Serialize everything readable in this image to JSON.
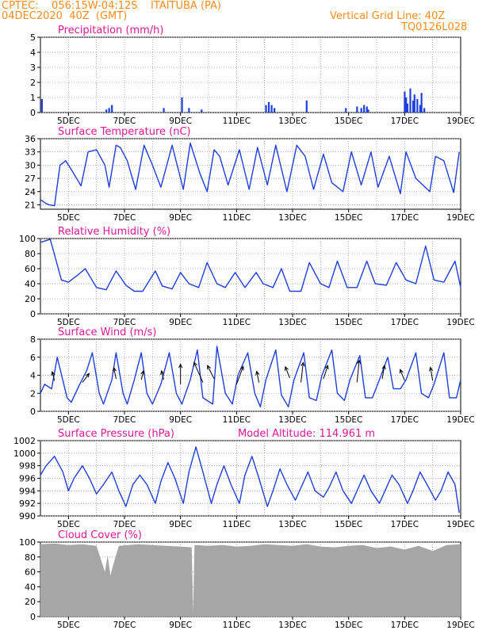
{
  "header": {
    "line1": "CPTEC:    056:15W-04:12S    ITAITUBA (PA)",
    "line2": "04DEC2020  40Z  (GMT)",
    "vgrid": "Vertical Grid Line: 40Z",
    "code": "TQ0126L028"
  },
  "colors": {
    "header": "#ff8c1a",
    "title": "#e0179a",
    "series": "#1f3fdc",
    "cloud": "#a6a6a6",
    "arrow": "#000000"
  },
  "x_ticks": [
    "5DEC",
    "7DEC",
    "9DEC",
    "11DEC",
    "13DEC",
    "15DEC",
    "17DEC",
    "19DEC"
  ],
  "chart_data": [
    {
      "type": "bar",
      "title": "Precipitation (mm/h)",
      "ylim": [
        0,
        5
      ],
      "yticks": [
        "0",
        "1",
        "2",
        "3",
        "4",
        "5"
      ],
      "x_range_days": [
        4.0,
        19.0
      ],
      "x": [
        4.05,
        6.35,
        6.45,
        6.55,
        8.4,
        9.05,
        9.3,
        9.75,
        12.05,
        12.15,
        12.25,
        12.35,
        13.5,
        14.9,
        15.3,
        15.45,
        15.55,
        15.65,
        15.7,
        17.0,
        17.05,
        17.1,
        17.2,
        17.3,
        17.35,
        17.45,
        17.55,
        17.6,
        17.7
      ],
      "values": [
        0.9,
        0.2,
        0.3,
        0.5,
        0.3,
        1.0,
        0.3,
        0.2,
        0.5,
        0.7,
        0.5,
        0.3,
        0.8,
        0.3,
        0.4,
        0.3,
        0.5,
        0.4,
        0.2,
        1.4,
        1.0,
        0.6,
        1.6,
        0.8,
        1.2,
        0.9,
        0.5,
        1.3,
        0.3
      ]
    },
    {
      "type": "line",
      "title": "Surface Temperature (nC)",
      "ylim": [
        20,
        36
      ],
      "yticks": [
        "21",
        "24",
        "27",
        "30",
        "33",
        "36"
      ],
      "ytick_values": [
        21,
        24,
        27,
        30,
        33,
        36
      ],
      "x": [
        4.0,
        4.15,
        4.3,
        4.5,
        4.7,
        4.9,
        5.1,
        5.45,
        5.7,
        6.0,
        6.3,
        6.45,
        6.7,
        6.85,
        7.1,
        7.4,
        7.7,
        8.0,
        8.3,
        8.7,
        9.1,
        9.35,
        9.7,
        9.95,
        10.2,
        10.4,
        10.7,
        11.1,
        11.45,
        11.75,
        12.1,
        12.4,
        12.8,
        13.15,
        13.45,
        13.75,
        14.1,
        14.4,
        14.8,
        15.1,
        15.45,
        15.8,
        16.05,
        16.45,
        16.85,
        17.05,
        17.4,
        17.9,
        18.1,
        18.4,
        18.75,
        18.95
      ],
      "values": [
        22.2,
        21.5,
        21.0,
        20.8,
        30.0,
        31.0,
        29.0,
        25.3,
        33.0,
        33.5,
        30.0,
        25.0,
        34.5,
        34.0,
        31.0,
        24.5,
        34.5,
        30.0,
        25.0,
        34.5,
        24.5,
        35.0,
        28.0,
        24.0,
        33.5,
        32.0,
        25.5,
        33.5,
        24.5,
        34.0,
        25.5,
        34.5,
        24.0,
        34.5,
        32.0,
        24.5,
        32.5,
        26.0,
        24.0,
        33.0,
        25.5,
        33.0,
        25.0,
        32.0,
        23.5,
        33.0,
        27.0,
        24.0,
        32.0,
        31.0,
        23.8,
        33.0
      ]
    },
    {
      "type": "line",
      "title": "Relative Humidity (%)",
      "ylim": [
        0,
        100
      ],
      "yticks": [
        "0",
        "20",
        "40",
        "60",
        "80",
        "100"
      ],
      "ytick_values": [
        0,
        20,
        40,
        60,
        80,
        100
      ],
      "x": [
        4.0,
        4.35,
        4.75,
        5.0,
        5.35,
        5.6,
        6.0,
        6.35,
        6.7,
        7.05,
        7.35,
        7.65,
        8.1,
        8.35,
        8.7,
        9.0,
        9.3,
        9.65,
        9.95,
        10.3,
        10.6,
        10.95,
        11.3,
        11.7,
        11.95,
        12.3,
        12.6,
        12.9,
        13.3,
        13.6,
        14.0,
        14.3,
        14.6,
        14.95,
        15.3,
        15.65,
        15.95,
        16.35,
        16.7,
        17.05,
        17.4,
        17.75,
        18.05,
        18.4,
        18.8,
        19.0
      ],
      "values": [
        95,
        99,
        45,
        42,
        52,
        60,
        35,
        32,
        57,
        38,
        30,
        30,
        57,
        37,
        33,
        55,
        40,
        35,
        68,
        40,
        35,
        55,
        35,
        55,
        40,
        35,
        60,
        30,
        30,
        68,
        40,
        35,
        70,
        35,
        35,
        70,
        40,
        38,
        68,
        45,
        40,
        90,
        45,
        42,
        70,
        35
      ]
    },
    {
      "type": "line",
      "title": "Surface Wind (m/s)",
      "ylim": [
        0,
        8
      ],
      "yticks": [
        "0",
        "2",
        "4",
        "6",
        "8"
      ],
      "ytick_values": [
        0,
        2,
        4,
        6,
        8
      ],
      "x": [
        4.0,
        4.15,
        4.4,
        4.6,
        4.95,
        5.1,
        5.4,
        5.65,
        5.85,
        6.1,
        6.25,
        6.55,
        6.7,
        6.95,
        7.1,
        7.35,
        7.6,
        7.8,
        8.0,
        8.3,
        8.6,
        8.85,
        9.05,
        9.35,
        9.6,
        9.8,
        10.15,
        10.3,
        10.6,
        10.85,
        11.05,
        11.4,
        11.65,
        11.85,
        12.05,
        12.4,
        12.6,
        12.85,
        13.05,
        13.4,
        13.6,
        13.85,
        14.05,
        14.4,
        14.6,
        14.85,
        15.05,
        15.4,
        15.6,
        15.85,
        16.1,
        16.4,
        16.6,
        16.85,
        17.05,
        17.4,
        17.6,
        17.85,
        18.05,
        18.4,
        18.6,
        18.85,
        19.0
      ],
      "values": [
        2.0,
        3.0,
        2.5,
        6.0,
        1.5,
        1.0,
        3.0,
        4.5,
        6.5,
        2.0,
        0.8,
        3.5,
        6.5,
        2.0,
        0.8,
        3.5,
        6.5,
        2.0,
        0.8,
        3.0,
        6.5,
        2.0,
        0.8,
        3.5,
        6.8,
        1.5,
        0.8,
        7.2,
        2.0,
        0.8,
        4.0,
        6.5,
        2.0,
        0.5,
        3.5,
        6.8,
        1.8,
        0.5,
        3.5,
        6.5,
        1.5,
        1.2,
        4.0,
        6.8,
        2.0,
        1.2,
        3.5,
        6.2,
        1.5,
        1.5,
        3.5,
        6.0,
        2.5,
        2.5,
        3.5,
        6.5,
        2.0,
        1.5,
        3.0,
        6.5,
        1.5,
        1.5,
        3.5
      ],
      "vectors": [
        {
          "x": 4.5,
          "y": 3.4,
          "dx": -0.1,
          "dy": 0.4
        },
        {
          "x": 5.5,
          "y": 3.2,
          "dx": 0.3,
          "dy": 0.4
        },
        {
          "x": 6.7,
          "y": 3.6,
          "dx": -0.1,
          "dy": 0.5
        },
        {
          "x": 7.6,
          "y": 3.5,
          "dx": 0.1,
          "dy": 0.4
        },
        {
          "x": 8.4,
          "y": 3.5,
          "dx": -0.1,
          "dy": 0.4
        },
        {
          "x": 9.0,
          "y": 3.0,
          "dx": 0.0,
          "dy": 0.9
        },
        {
          "x": 9.8,
          "y": 3.2,
          "dx": -0.4,
          "dy": 0.9
        },
        {
          "x": 10.2,
          "y": 3.6,
          "dx": -0.3,
          "dy": 0.6
        },
        {
          "x": 11.0,
          "y": 3.0,
          "dx": 0.3,
          "dy": 0.8
        },
        {
          "x": 11.8,
          "y": 3.2,
          "dx": -0.1,
          "dy": 0.5
        },
        {
          "x": 12.9,
          "y": 3.7,
          "dx": -0.2,
          "dy": 0.5
        },
        {
          "x": 13.3,
          "y": 3.2,
          "dx": 0.1,
          "dy": 0.9
        },
        {
          "x": 14.1,
          "y": 3.6,
          "dx": 0.2,
          "dy": 0.6
        },
        {
          "x": 15.3,
          "y": 3.2,
          "dx": 0.1,
          "dy": 1.0
        },
        {
          "x": 16.2,
          "y": 3.6,
          "dx": 0.1,
          "dy": 0.6
        },
        {
          "x": 17.0,
          "y": 3.4,
          "dx": -0.2,
          "dy": 0.5
        },
        {
          "x": 18.0,
          "y": 3.4,
          "dx": -0.1,
          "dy": 0.6
        }
      ]
    },
    {
      "type": "line",
      "title": "Surface Pressure (hPa)",
      "annotation": "Model Altitude: 114.961 m",
      "ylim": [
        990,
        1002
      ],
      "yticks": [
        "990",
        "992",
        "994",
        "996",
        "998",
        "1000",
        "1002"
      ],
      "ytick_values": [
        990,
        992,
        994,
        996,
        998,
        1000,
        1002
      ],
      "x": [
        4.0,
        4.2,
        4.5,
        4.8,
        5.0,
        5.2,
        5.5,
        5.75,
        6.0,
        6.25,
        6.55,
        6.8,
        7.05,
        7.3,
        7.55,
        7.8,
        8.1,
        8.3,
        8.55,
        8.8,
        9.1,
        9.3,
        9.55,
        9.8,
        10.1,
        10.3,
        10.55,
        10.8,
        11.1,
        11.3,
        11.55,
        11.8,
        12.1,
        12.3,
        12.55,
        12.8,
        13.1,
        13.3,
        13.55,
        13.8,
        14.1,
        14.3,
        14.55,
        14.8,
        15.1,
        15.3,
        15.55,
        15.8,
        16.1,
        16.3,
        16.55,
        16.8,
        17.1,
        17.3,
        17.55,
        17.8,
        18.1,
        18.3,
        18.55,
        18.8,
        18.95
      ],
      "values": [
        996.5,
        998,
        999.5,
        997,
        994,
        996,
        998,
        996,
        993.5,
        995,
        997,
        994,
        991.5,
        995,
        996.5,
        995,
        992,
        995.5,
        998.5,
        996,
        992,
        997,
        1001,
        997,
        992,
        995,
        998,
        995,
        992,
        996.5,
        999.5,
        996,
        991.5,
        994,
        997.5,
        995,
        992.5,
        994.5,
        997,
        994,
        993,
        994.5,
        997,
        994,
        992,
        994,
        996.5,
        994,
        992,
        994,
        996.5,
        995,
        992,
        994,
        997,
        995,
        992.5,
        994,
        997,
        995,
        990.5
      ]
    },
    {
      "type": "area",
      "title": "Cloud Cover (%)",
      "ylim": [
        0,
        100
      ],
      "yticks": [
        "0",
        "20",
        "40",
        "60",
        "80",
        "100"
      ],
      "ytick_values": [
        0,
        20,
        40,
        60,
        80,
        100
      ],
      "x": [
        4.0,
        4.5,
        5.0,
        5.5,
        6.0,
        6.3,
        6.4,
        6.5,
        6.6,
        6.8,
        7.5,
        8.0,
        8.5,
        9.0,
        9.4,
        9.45,
        9.5,
        10.0,
        10.5,
        11.0,
        11.5,
        12.0,
        12.5,
        13.0,
        13.5,
        14.0,
        14.5,
        15.0,
        15.5,
        16.0,
        16.5,
        17.0,
        17.5,
        18.0,
        18.5,
        19.0
      ],
      "values": [
        97,
        98,
        96,
        97,
        95,
        60,
        82,
        55,
        70,
        95,
        97,
        96,
        95,
        94,
        93,
        5,
        96,
        95,
        96,
        94,
        95,
        97,
        96,
        95,
        97,
        94,
        93,
        95,
        96,
        92,
        94,
        90,
        95,
        88,
        96,
        97
      ]
    }
  ]
}
